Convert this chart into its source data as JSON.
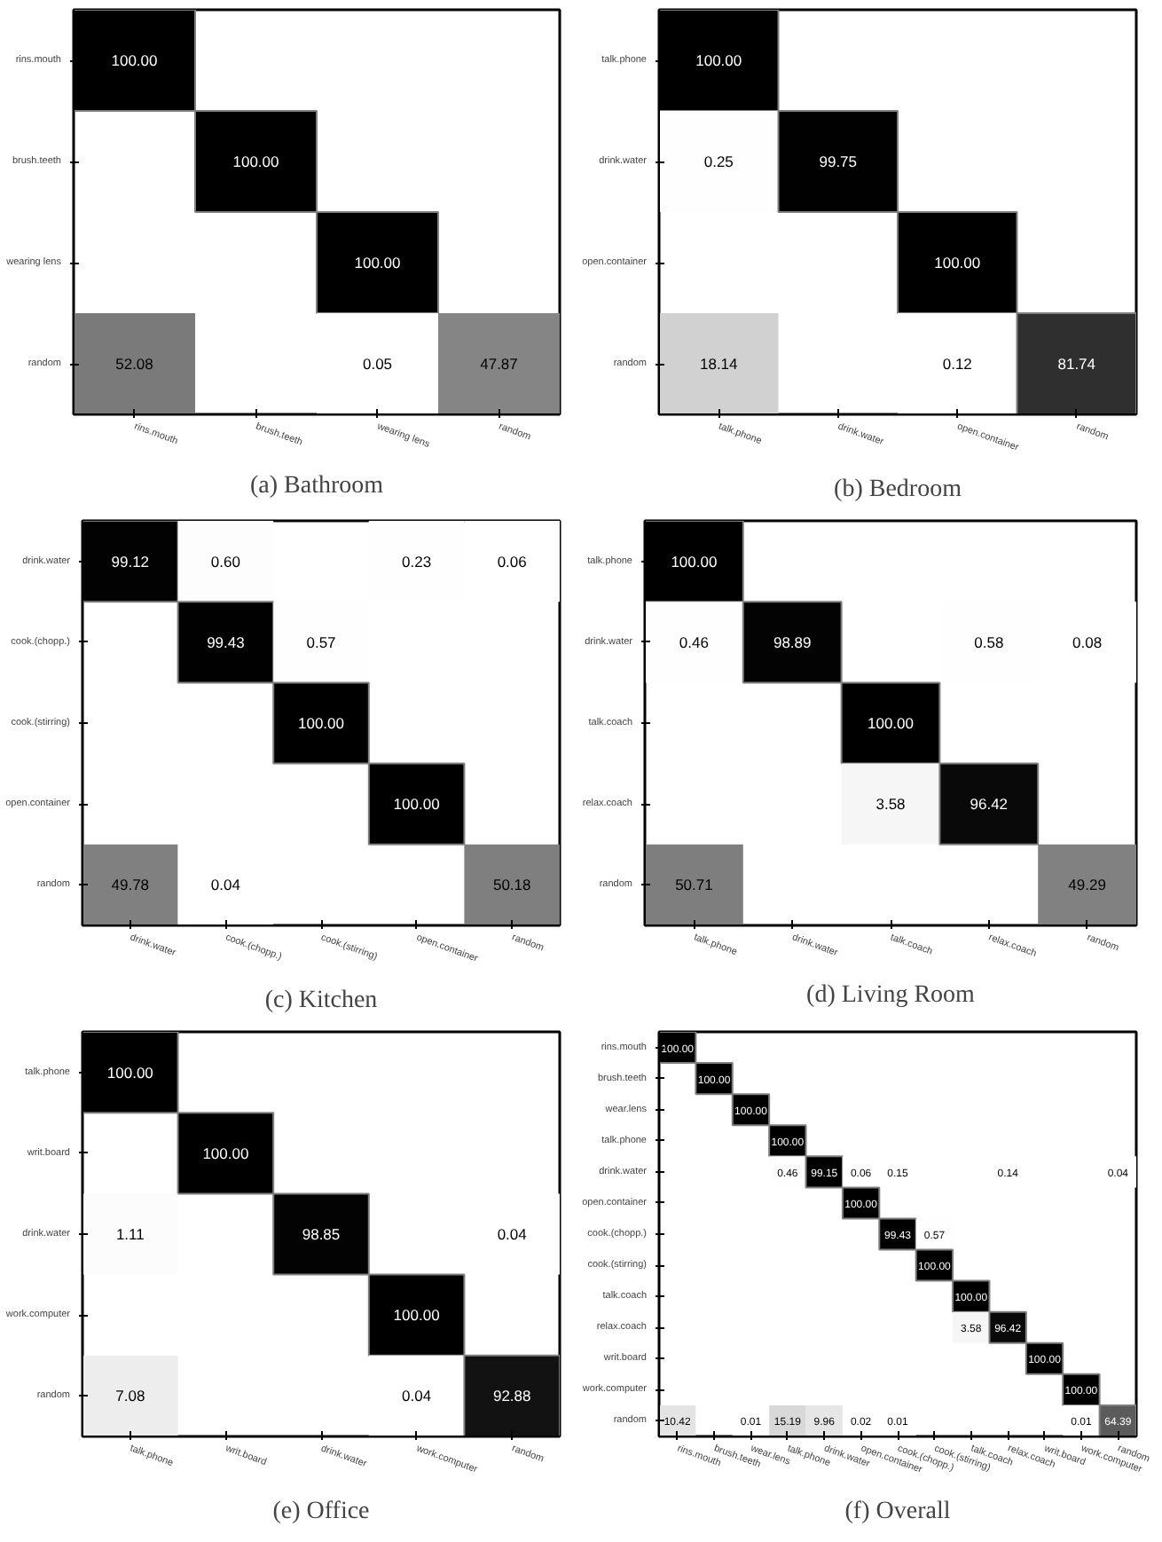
{
  "chart_data": [
    {
      "type": "heatmap",
      "title": "(a) Bathroom",
      "categories": [
        "rins.mouth",
        "brush.teeth",
        "wearing lens",
        "random"
      ],
      "y_categories": [
        "rins.mouth",
        "brush.teeth",
        "wearing lens",
        "random"
      ],
      "cells": [
        [
          100,
          null,
          null,
          null
        ],
        [
          null,
          100,
          null,
          null
        ],
        [
          null,
          null,
          100,
          null
        ],
        [
          52.08,
          null,
          0.05,
          47.87
        ]
      ],
      "cell_labels": [
        [
          "100.00",
          null,
          null,
          null
        ],
        [
          null,
          "100.00",
          null,
          null
        ],
        [
          null,
          null,
          "100.00",
          null
        ],
        [
          "52.08",
          null,
          "0.05",
          "47.87"
        ]
      ]
    },
    {
      "type": "heatmap",
      "title": "(b) Bedroom",
      "categories": [
        "talk.phone",
        "drink.water",
        "open.container",
        "random"
      ],
      "y_categories": [
        "talk.phone",
        "drink.water",
        "open.container",
        "random"
      ],
      "cells": [
        [
          100,
          null,
          null,
          null
        ],
        [
          0.25,
          99.75,
          null,
          null
        ],
        [
          null,
          null,
          100,
          null
        ],
        [
          18.14,
          null,
          0.12,
          81.74
        ]
      ],
      "cell_labels": [
        [
          "100.00",
          null,
          null,
          null
        ],
        [
          "0.25",
          "99.75",
          null,
          null
        ],
        [
          null,
          null,
          "100.00",
          null
        ],
        [
          "18.14",
          null,
          "0.12",
          "81.74"
        ]
      ]
    },
    {
      "type": "heatmap",
      "title": "(c) Kitchen",
      "categories": [
        "drink.water",
        "cook.(chopp.)",
        "cook.(stirring)",
        "open.container",
        "random"
      ],
      "y_categories": [
        "drink.water",
        "cook.(chopp.)",
        "cook.(stirring)",
        "open.container",
        "random"
      ],
      "cells": [
        [
          99.12,
          0.6,
          null,
          0.23,
          0.06
        ],
        [
          null,
          99.43,
          0.57,
          null,
          null
        ],
        [
          null,
          null,
          100,
          null,
          null
        ],
        [
          null,
          null,
          null,
          100,
          null
        ],
        [
          49.78,
          0.04,
          null,
          null,
          50.18
        ]
      ],
      "cell_labels": [
        [
          "99.12",
          "0.60",
          null,
          "0.23",
          "0.06"
        ],
        [
          null,
          "99.43",
          "0.57",
          null,
          null
        ],
        [
          null,
          null,
          "100.00",
          null,
          null
        ],
        [
          null,
          null,
          null,
          "100.00",
          null
        ],
        [
          "49.78",
          "0.04",
          null,
          null,
          "50.18"
        ]
      ]
    },
    {
      "type": "heatmap",
      "title": "(d) Living Room",
      "categories": [
        "talk.phone",
        "drink.water",
        "talk.coach",
        "relax.coach",
        "random"
      ],
      "y_categories": [
        "talk.phone",
        "drink.water",
        "talk.coach",
        "relax.coach",
        "random"
      ],
      "cells": [
        [
          100,
          null,
          null,
          null,
          null
        ],
        [
          0.46,
          98.89,
          null,
          0.58,
          0.08
        ],
        [
          null,
          null,
          100,
          null,
          null
        ],
        [
          null,
          null,
          3.58,
          96.42,
          null
        ],
        [
          50.71,
          null,
          null,
          null,
          49.29
        ]
      ],
      "cell_labels": [
        [
          "100.00",
          null,
          null,
          null,
          null
        ],
        [
          "0.46",
          "98.89",
          null,
          "0.58",
          "0.08"
        ],
        [
          null,
          null,
          "100.00",
          null,
          null
        ],
        [
          null,
          null,
          "3.58",
          "96.42",
          null
        ],
        [
          "50.71",
          null,
          null,
          null,
          "49.29"
        ]
      ]
    },
    {
      "type": "heatmap",
      "title": "(e) Office",
      "categories": [
        "talk.phone",
        "writ.board",
        "drink.water",
        "work.computer",
        "random"
      ],
      "y_categories": [
        "talk.phone",
        "writ.board",
        "drink.water",
        "work.computer",
        "random"
      ],
      "cells": [
        [
          100,
          null,
          null,
          null,
          null
        ],
        [
          null,
          100,
          null,
          null,
          null
        ],
        [
          1.11,
          null,
          98.85,
          null,
          0.04
        ],
        [
          null,
          null,
          null,
          100,
          null
        ],
        [
          7.08,
          null,
          null,
          0.04,
          92.88
        ]
      ],
      "cell_labels": [
        [
          "100.00",
          null,
          null,
          null,
          null
        ],
        [
          null,
          "100.00",
          null,
          null,
          null
        ],
        [
          "1.11",
          null,
          "98.85",
          null,
          "0.04"
        ],
        [
          null,
          null,
          null,
          "100.00",
          null
        ],
        [
          "7.08",
          null,
          null,
          "0.04",
          "92.88"
        ]
      ]
    },
    {
      "type": "heatmap",
      "title": "(f) Overall",
      "categories": [
        "rins.mouth",
        "brush.teeth",
        "wear.lens",
        "talk.phone",
        "drink.water",
        "open.container",
        "cook.(chopp.)",
        "cook.(stirring)",
        "talk.coach",
        "relax.coach",
        "writ.board",
        "work.computer",
        "random"
      ],
      "y_categories": [
        "rins.mouth",
        "brush.teeth",
        "wear.lens",
        "talk.phone",
        "drink.water",
        "open.container",
        "cook.(chopp.)",
        "cook.(stirring)",
        "talk.coach",
        "relax.coach",
        "writ.board",
        "work.computer",
        "random"
      ],
      "cells": [
        [
          100,
          null,
          null,
          null,
          null,
          null,
          null,
          null,
          null,
          null,
          null,
          null,
          null
        ],
        [
          null,
          100,
          null,
          null,
          null,
          null,
          null,
          null,
          null,
          null,
          null,
          null,
          null
        ],
        [
          null,
          null,
          100,
          null,
          null,
          null,
          null,
          null,
          null,
          null,
          null,
          null,
          null
        ],
        [
          null,
          null,
          null,
          100,
          null,
          null,
          null,
          null,
          null,
          null,
          null,
          null,
          null
        ],
        [
          null,
          null,
          null,
          0.46,
          99.15,
          0.06,
          0.15,
          null,
          null,
          0.14,
          null,
          null,
          0.04
        ],
        [
          null,
          null,
          null,
          null,
          null,
          100,
          null,
          null,
          null,
          null,
          null,
          null,
          null
        ],
        [
          null,
          null,
          null,
          null,
          null,
          null,
          99.43,
          0.57,
          null,
          null,
          null,
          null,
          null
        ],
        [
          null,
          null,
          null,
          null,
          null,
          null,
          null,
          100,
          null,
          null,
          null,
          null,
          null
        ],
        [
          null,
          null,
          null,
          null,
          null,
          null,
          null,
          null,
          100,
          null,
          null,
          null,
          null
        ],
        [
          null,
          null,
          null,
          null,
          null,
          null,
          null,
          null,
          3.58,
          96.42,
          null,
          null,
          null
        ],
        [
          null,
          null,
          null,
          null,
          null,
          null,
          null,
          null,
          null,
          null,
          100,
          null,
          null
        ],
        [
          null,
          null,
          null,
          null,
          null,
          null,
          null,
          null,
          null,
          null,
          null,
          100,
          null
        ],
        [
          10.42,
          null,
          0.01,
          15.19,
          9.96,
          0.02,
          0.01,
          null,
          null,
          null,
          null,
          0.01,
          64.39
        ]
      ],
      "cell_labels": [
        [
          "100.00",
          null,
          null,
          null,
          null,
          null,
          null,
          null,
          null,
          null,
          null,
          null,
          null
        ],
        [
          null,
          "100.00",
          null,
          null,
          null,
          null,
          null,
          null,
          null,
          null,
          null,
          null,
          null
        ],
        [
          null,
          null,
          "100.00",
          null,
          null,
          null,
          null,
          null,
          null,
          null,
          null,
          null,
          null
        ],
        [
          null,
          null,
          null,
          "100.00",
          null,
          null,
          null,
          null,
          null,
          null,
          null,
          null,
          null
        ],
        [
          null,
          null,
          null,
          "0.46",
          "99.15",
          "0.06",
          "0.15",
          null,
          null,
          "0.14",
          null,
          null,
          "0.04"
        ],
        [
          null,
          null,
          null,
          null,
          null,
          "100.00",
          null,
          null,
          null,
          null,
          null,
          null,
          null
        ],
        [
          null,
          null,
          null,
          null,
          null,
          null,
          "99.43",
          "0.57",
          null,
          null,
          null,
          null,
          null
        ],
        [
          null,
          null,
          null,
          null,
          null,
          null,
          null,
          "100.00",
          null,
          null,
          null,
          null,
          null
        ],
        [
          null,
          null,
          null,
          null,
          null,
          null,
          null,
          null,
          "100.00",
          null,
          null,
          null,
          null
        ],
        [
          null,
          null,
          null,
          null,
          null,
          null,
          null,
          null,
          "3.58",
          "96.42",
          null,
          null,
          null
        ],
        [
          null,
          null,
          null,
          null,
          null,
          null,
          null,
          null,
          null,
          null,
          "100.00",
          null,
          null
        ],
        [
          null,
          null,
          null,
          null,
          null,
          null,
          null,
          null,
          null,
          null,
          null,
          "100.00",
          null
        ],
        [
          "10.42",
          null,
          "0.01",
          "15.19",
          "9.96",
          "0.02",
          "0.01",
          null,
          null,
          null,
          null,
          "0.01",
          "64.39"
        ]
      ]
    }
  ]
}
